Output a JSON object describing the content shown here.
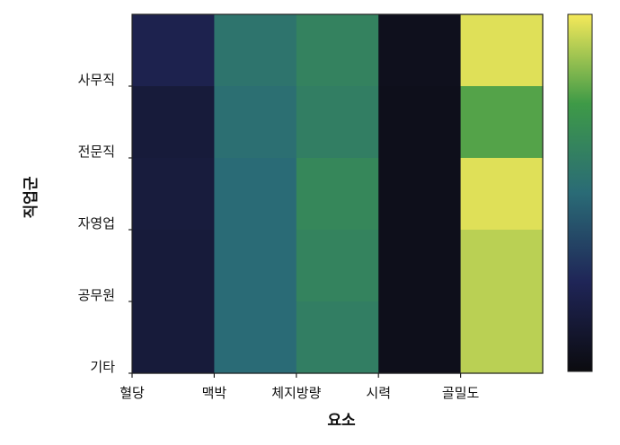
{
  "chart_data": {
    "type": "heatmap",
    "title": "",
    "xlabel": "요소",
    "ylabel": "직업군",
    "x_categories": [
      "혈당",
      "맥박",
      "체지방량",
      "시력",
      "골밀도"
    ],
    "y_categories": [
      "사무직",
      "전문직",
      "자영업",
      "공무원",
      "기타"
    ],
    "values": [
      [
        0.22,
        0.55,
        0.62,
        0.05,
        0.97
      ],
      [
        0.15,
        0.52,
        0.6,
        0.04,
        0.78
      ],
      [
        0.16,
        0.5,
        0.65,
        0.04,
        0.97
      ],
      [
        0.15,
        0.5,
        0.63,
        0.04,
        0.92
      ],
      [
        0.15,
        0.5,
        0.6,
        0.04,
        0.92
      ]
    ],
    "colorscale": "dark-to-yellow (black, navy, teal, green, yellow)",
    "colorbar": true,
    "colorbar_ticklabels": false,
    "colors": [
      "#0b0b0f",
      "#1f2557",
      "#2a6b76",
      "#3e9a47",
      "#f5e95a"
    ]
  }
}
